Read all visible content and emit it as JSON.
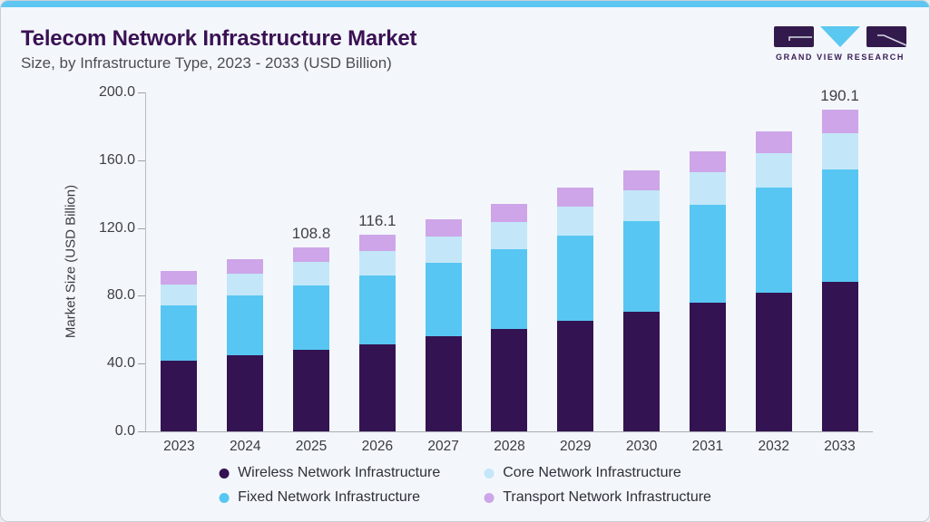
{
  "header": {
    "title": "Telecom Network Infrastructure Market",
    "subtitle": "Size, by Infrastructure Type, 2023 - 2033 (USD Billion)",
    "logo_text": "GRAND VIEW RESEARCH"
  },
  "colors": {
    "accent_strip": "#5ec6f1",
    "card_background": "#f3f7fb",
    "card_border": "#c9ced6",
    "title_text": "#3a1153",
    "subtitle_text": "#4d4d55",
    "axis_text": "#3f3f46",
    "logo_purple": "#331a4d",
    "logo_blue": "#5ac8f0"
  },
  "chart_data": {
    "type": "bar",
    "stacked": true,
    "title": "Telecom Network Infrastructure Market",
    "subtitle": "Size, by Infrastructure Type, 2023 - 2033 (USD Billion)",
    "categories": [
      "2023",
      "2024",
      "2025",
      "2026",
      "2027",
      "2028",
      "2029",
      "2030",
      "2031",
      "2032",
      "2033"
    ],
    "series": [
      {
        "name": "Wireless Network Infrastructure",
        "color": "#341352",
        "values": [
          41.5,
          44.8,
          48.3,
          51.6,
          56.2,
          60.6,
          65.4,
          70.5,
          76.1,
          82.1,
          88.5
        ]
      },
      {
        "name": "Fixed Network Infrastructure",
        "color": "#58c6f2",
        "values": [
          33.0,
          35.4,
          37.9,
          40.6,
          43.5,
          46.7,
          50.0,
          53.6,
          57.5,
          61.6,
          66.0
        ]
      },
      {
        "name": "Core Network Infrastructure",
        "color": "#c3e7f9",
        "values": [
          12.3,
          13.0,
          13.7,
          14.5,
          15.3,
          16.2,
          17.1,
          18.1,
          19.2,
          20.3,
          21.5
        ]
      },
      {
        "name": "Transport Network Infrastructure",
        "color": "#cda5e8",
        "values": [
          8.0,
          8.5,
          8.9,
          9.4,
          10.0,
          10.6,
          11.2,
          11.8,
          12.5,
          13.2,
          14.1
        ]
      }
    ],
    "bar_total_labels": {
      "2025": "108.8",
      "2026": "116.1",
      "2033": "190.1"
    },
    "totals": [
      94.8,
      101.7,
      108.8,
      116.1,
      125.0,
      134.1,
      143.7,
      154.0,
      165.3,
      177.2,
      190.1
    ],
    "xlabel": "",
    "ylabel": "Market Size (USD Billion)",
    "ylim": [
      0,
      200
    ],
    "yticks": [
      0,
      40,
      80,
      120,
      160,
      200
    ],
    "ytick_labels": [
      "0.0",
      "40.0",
      "80.0",
      "120.0",
      "160.0",
      "200.0"
    ],
    "grid": false,
    "legend_position": "bottom",
    "legend_order": [
      0,
      2,
      1,
      3
    ]
  }
}
